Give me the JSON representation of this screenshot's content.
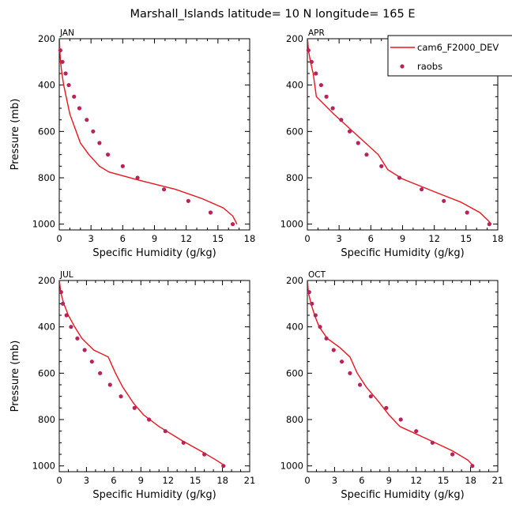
{
  "figure": {
    "title": "Marshall_Islands  latitude= 10 N longitude= 165 E"
  },
  "legend": {
    "entries": [
      {
        "name": "cam6_F2000_DEV",
        "kind": "line",
        "color": "#e8161e"
      },
      {
        "name": "raobs",
        "kind": "marker",
        "color": "#b8235a"
      }
    ]
  },
  "chart_data": [
    {
      "type": "line",
      "title": "JAN",
      "xlabel": "Specific Humidity (g/kg)",
      "ylabel": "Pressure (mb)",
      "xlim": [
        0,
        18
      ],
      "ylim": [
        200,
        1025
      ],
      "y_inverted": true,
      "xticks": [
        0,
        3,
        6,
        9,
        12,
        15,
        18
      ],
      "yticks": [
        200,
        400,
        600,
        800,
        1000
      ],
      "series": [
        {
          "name": "cam6_F2000_DEV",
          "kind": "line",
          "color": "#e8161e",
          "points": [
            [
              0.02,
              200
            ],
            [
              0.05,
              250
            ],
            [
              0.12,
              300
            ],
            [
              0.25,
              350
            ],
            [
              0.42,
              400
            ],
            [
              0.65,
              450
            ],
            [
              1.0,
              525
            ],
            [
              1.6,
              600
            ],
            [
              2.0,
              650
            ],
            [
              2.8,
              700
            ],
            [
              3.8,
              750
            ],
            [
              4.7,
              775
            ],
            [
              7.5,
              810
            ],
            [
              11.0,
              850
            ],
            [
              13.5,
              890
            ],
            [
              15.5,
              930
            ],
            [
              16.4,
              965
            ],
            [
              16.8,
              1000
            ]
          ]
        },
        {
          "name": "raobs",
          "kind": "marker",
          "color": "#b8235a",
          "points": [
            [
              0.1,
              250
            ],
            [
              0.3,
              300
            ],
            [
              0.6,
              350
            ],
            [
              0.9,
              400
            ],
            [
              1.4,
              450
            ],
            [
              1.9,
              500
            ],
            [
              2.6,
              550
            ],
            [
              3.2,
              600
            ],
            [
              3.8,
              650
            ],
            [
              4.6,
              700
            ],
            [
              6.0,
              750
            ],
            [
              7.4,
              800
            ],
            [
              9.9,
              850
            ],
            [
              12.2,
              900
            ],
            [
              14.3,
              950
            ],
            [
              16.4,
              1000
            ]
          ]
        }
      ]
    },
    {
      "type": "line",
      "title": "APR",
      "xlabel": "Specific Humidity (g/kg)",
      "ylabel": "",
      "xlim": [
        0,
        18
      ],
      "ylim": [
        200,
        1025
      ],
      "y_inverted": true,
      "xticks": [
        0,
        3,
        6,
        9,
        12,
        15,
        18
      ],
      "yticks": [
        200,
        400,
        600,
        800,
        1000
      ],
      "series": [
        {
          "name": "cam6_F2000_DEV",
          "kind": "line",
          "color": "#e8161e",
          "points": [
            [
              0.02,
              200
            ],
            [
              0.1,
              250
            ],
            [
              0.3,
              300
            ],
            [
              0.55,
              350
            ],
            [
              0.85,
              450
            ],
            [
              2.5,
              525
            ],
            [
              4.3,
              600
            ],
            [
              5.5,
              650
            ],
            [
              6.7,
              700
            ],
            [
              7.6,
              765
            ],
            [
              9.0,
              805
            ],
            [
              12.0,
              860
            ],
            [
              14.5,
              905
            ],
            [
              16.3,
              950
            ],
            [
              17.1,
              985
            ],
            [
              17.4,
              1000
            ]
          ]
        },
        {
          "name": "raobs",
          "kind": "marker",
          "color": "#b8235a",
          "points": [
            [
              0.1,
              250
            ],
            [
              0.4,
              300
            ],
            [
              0.8,
              350
            ],
            [
              1.3,
              400
            ],
            [
              1.8,
              450
            ],
            [
              2.4,
              500
            ],
            [
              3.2,
              550
            ],
            [
              4.0,
              600
            ],
            [
              4.8,
              650
            ],
            [
              5.6,
              700
            ],
            [
              7.0,
              750
            ],
            [
              8.7,
              800
            ],
            [
              10.8,
              850
            ],
            [
              12.9,
              900
            ],
            [
              15.1,
              950
            ],
            [
              17.2,
              1000
            ]
          ]
        }
      ]
    },
    {
      "type": "line",
      "title": "JUL",
      "xlabel": "Specific Humidity (g/kg)",
      "ylabel": "Pressure (mb)",
      "xlim": [
        0,
        21
      ],
      "ylim": [
        200,
        1025
      ],
      "y_inverted": true,
      "xticks": [
        0,
        3,
        6,
        9,
        12,
        15,
        18,
        21
      ],
      "yticks": [
        200,
        400,
        600,
        800,
        1000
      ],
      "series": [
        {
          "name": "cam6_F2000_DEV",
          "kind": "line",
          "color": "#e8161e",
          "points": [
            [
              0.02,
              200
            ],
            [
              0.15,
              250
            ],
            [
              0.5,
              300
            ],
            [
              1.0,
              350
            ],
            [
              1.7,
              400
            ],
            [
              2.5,
              450
            ],
            [
              3.8,
              500
            ],
            [
              5.4,
              530
            ],
            [
              6.2,
              600
            ],
            [
              7.0,
              660
            ],
            [
              8.2,
              730
            ],
            [
              9.3,
              780
            ],
            [
              11.0,
              830
            ],
            [
              13.5,
              890
            ],
            [
              15.8,
              940
            ],
            [
              17.3,
              975
            ],
            [
              18.3,
              1000
            ]
          ]
        },
        {
          "name": "raobs",
          "kind": "marker",
          "color": "#b8235a",
          "points": [
            [
              0.2,
              250
            ],
            [
              0.4,
              300
            ],
            [
              0.8,
              350
            ],
            [
              1.3,
              400
            ],
            [
              2.0,
              450
            ],
            [
              2.8,
              500
            ],
            [
              3.6,
              550
            ],
            [
              4.5,
              600
            ],
            [
              5.6,
              650
            ],
            [
              6.8,
              700
            ],
            [
              8.3,
              750
            ],
            [
              9.9,
              800
            ],
            [
              11.7,
              850
            ],
            [
              13.7,
              900
            ],
            [
              16.0,
              950
            ],
            [
              18.1,
              1000
            ]
          ]
        }
      ]
    },
    {
      "type": "line",
      "title": "OCT",
      "xlabel": "Specific Humidity (g/kg)",
      "ylabel": "",
      "xlim": [
        0,
        21
      ],
      "ylim": [
        200,
        1025
      ],
      "y_inverted": true,
      "xticks": [
        0,
        3,
        6,
        9,
        12,
        15,
        18,
        21
      ],
      "yticks": [
        200,
        400,
        600,
        800,
        1000
      ],
      "series": [
        {
          "name": "cam6_F2000_DEV",
          "kind": "line",
          "color": "#e8161e",
          "points": [
            [
              0.02,
              200
            ],
            [
              0.1,
              250
            ],
            [
              0.4,
              300
            ],
            [
              0.8,
              350
            ],
            [
              1.3,
              400
            ],
            [
              2.2,
              450
            ],
            [
              3.6,
              490
            ],
            [
              4.7,
              530
            ],
            [
              5.5,
              600
            ],
            [
              6.5,
              660
            ],
            [
              7.8,
              720
            ],
            [
              9.0,
              780
            ],
            [
              10.2,
              830
            ],
            [
              13.0,
              880
            ],
            [
              16.0,
              935
            ],
            [
              17.7,
              975
            ],
            [
              18.3,
              1000
            ]
          ]
        },
        {
          "name": "raobs",
          "kind": "marker",
          "color": "#b8235a",
          "points": [
            [
              0.2,
              250
            ],
            [
              0.5,
              300
            ],
            [
              0.9,
              350
            ],
            [
              1.4,
              400
            ],
            [
              2.1,
              450
            ],
            [
              2.9,
              500
            ],
            [
              3.8,
              550
            ],
            [
              4.7,
              600
            ],
            [
              5.8,
              650
            ],
            [
              7.0,
              700
            ],
            [
              8.7,
              750
            ],
            [
              10.3,
              800
            ],
            [
              12.0,
              850
            ],
            [
              13.8,
              900
            ],
            [
              16.0,
              950
            ],
            [
              18.2,
              1000
            ]
          ]
        }
      ]
    }
  ]
}
